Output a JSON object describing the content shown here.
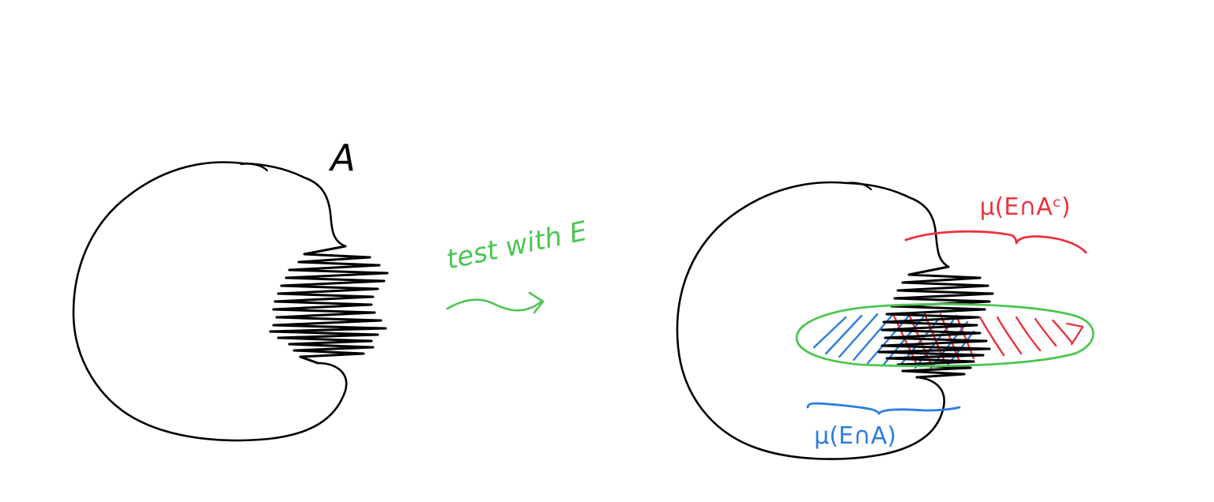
{
  "labels": {
    "set_name": "A",
    "arrow_caption": "test with E",
    "outer_measure_complement": "μ(E∩Aᶜ)",
    "outer_measure_intersection": "μ(E∩A)"
  },
  "colors": {
    "ink": "#000000",
    "test_set": "#4cc552",
    "intersection": "#2a7de1",
    "complement": "#e8343f",
    "background": "#ffffff"
  }
}
